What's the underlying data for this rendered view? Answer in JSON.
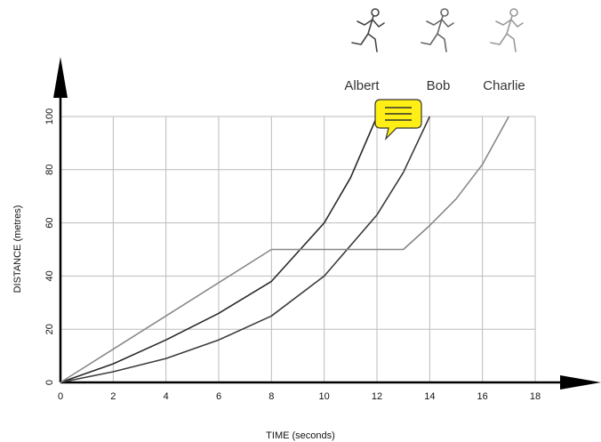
{
  "chart_data": {
    "type": "line",
    "xlabel": "TIME   (seconds)",
    "ylabel": "DISTANCE  (metres)",
    "xlim": [
      0,
      18
    ],
    "xticks": [
      0,
      2,
      4,
      6,
      8,
      10,
      12,
      14,
      16,
      18
    ],
    "ylim": [
      0,
      100
    ],
    "yticks": [
      0,
      20,
      40,
      60,
      80,
      100
    ],
    "grid": true,
    "series": [
      {
        "name": "Albert",
        "color": "#2a2a2a",
        "x": [
          0,
          2,
          4,
          6,
          8,
          10,
          11,
          12
        ],
        "values": [
          0,
          7,
          16,
          26,
          38,
          60,
          77,
          100
        ]
      },
      {
        "name": "Bob",
        "color": "#3c3c3c",
        "x": [
          0,
          2,
          4,
          6,
          8,
          10,
          12,
          13,
          14
        ],
        "values": [
          0,
          4,
          9,
          16,
          25,
          40,
          63,
          79,
          100
        ]
      },
      {
        "name": "Charlie",
        "color": "#888888",
        "x": [
          0,
          8,
          13,
          14,
          15,
          16,
          17
        ],
        "values": [
          0,
          50,
          50,
          59,
          69,
          82,
          100
        ]
      }
    ]
  }
}
